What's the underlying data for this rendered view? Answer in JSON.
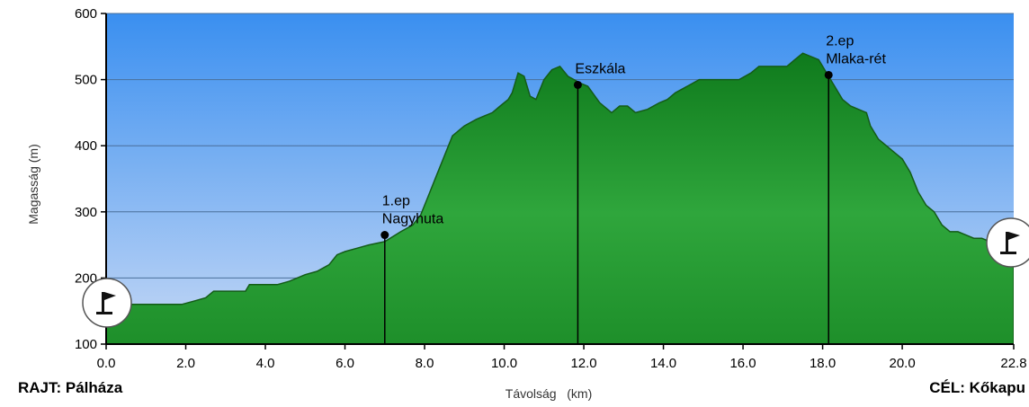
{
  "chart_data": {
    "type": "area",
    "xlabel": "Távolság   (km)",
    "ylabel": "Magasság (m)",
    "xlim": [
      0.0,
      22.8
    ],
    "ylim": [
      100,
      600
    ],
    "x_ticks": [
      "0.0",
      "2.0",
      "4.0",
      "6.0",
      "8.0",
      "10.0",
      "12.0",
      "14.0",
      "16.0",
      "18.0",
      "20.0",
      "22.8"
    ],
    "x_tick_values": [
      0,
      2,
      4,
      6,
      8,
      10,
      12,
      14,
      16,
      18,
      20,
      22.8
    ],
    "y_ticks": [
      "100",
      "200",
      "300",
      "400",
      "500",
      "600"
    ],
    "y_tick_values": [
      100,
      200,
      300,
      400,
      500,
      600
    ],
    "grid": "horizontal",
    "colors": {
      "sky_top": "#3a8ff0",
      "sky_bottom": "#c5d8f5",
      "ground_top": "#0f7a1c",
      "ground_mid": "#2fa63c",
      "ground_bottom": "#1e8f2a",
      "outline": "#145c17"
    },
    "series": [
      {
        "x": [
          0,
          0.3,
          0.6,
          1.0,
          1.5,
          1.9,
          2.2,
          2.5,
          2.7,
          3.0,
          3.4,
          3.5,
          3.6,
          4.0,
          4.3,
          4.6,
          5.0,
          5.3,
          5.6,
          5.8,
          6.0,
          6.3,
          6.6,
          7.0,
          7.4,
          7.7,
          7.9,
          8.1,
          8.3,
          8.5,
          8.7,
          9.0,
          9.3,
          9.5,
          9.7,
          9.9,
          10.1,
          10.2,
          10.35,
          10.5,
          10.65,
          10.8,
          11.0,
          11.2,
          11.4,
          11.6,
          11.9,
          12.1,
          12.4,
          12.7,
          12.9,
          13.1,
          13.3,
          13.6,
          13.9,
          14.1,
          14.3,
          14.6,
          14.9,
          15.1,
          15.4,
          15.9,
          16.2,
          16.4,
          16.6,
          16.9,
          17.1,
          17.3,
          17.5,
          17.7,
          17.9,
          18.1,
          18.3,
          18.5,
          18.7,
          18.9,
          19.1,
          19.2,
          19.4,
          19.6,
          19.8,
          20.0,
          20.2,
          20.4,
          20.6,
          20.8,
          21.0,
          21.2,
          21.4,
          21.6,
          21.8,
          22.0,
          22.2,
          22.4,
          22.6,
          22.8
        ],
        "y": [
          160,
          160,
          160,
          160,
          160,
          160,
          165,
          170,
          180,
          180,
          180,
          180,
          190,
          190,
          190,
          195,
          205,
          210,
          220,
          235,
          240,
          245,
          250,
          255,
          270,
          280,
          295,
          325,
          355,
          385,
          415,
          430,
          440,
          445,
          450,
          460,
          470,
          480,
          510,
          505,
          475,
          470,
          500,
          515,
          520,
          505,
          495,
          490,
          465,
          450,
          460,
          460,
          450,
          455,
          465,
          470,
          480,
          490,
          500,
          500,
          500,
          500,
          510,
          520,
          520,
          520,
          520,
          530,
          540,
          535,
          530,
          510,
          490,
          470,
          460,
          455,
          450,
          430,
          410,
          400,
          390,
          380,
          360,
          330,
          310,
          300,
          280,
          270,
          270,
          265,
          260,
          260,
          255,
          250,
          245,
          245
        ]
      }
    ],
    "waypoints": [
      {
        "lines": [
          "1.ep",
          "Nagyhuta"
        ],
        "x": 7.0,
        "y": 265
      },
      {
        "lines": [
          "Eszkála"
        ],
        "x": 11.85,
        "y": 492
      },
      {
        "lines": [
          "2.ep",
          "Mlaka-rét"
        ],
        "x": 18.15,
        "y": 507
      }
    ],
    "start_label": "RAJT: Pálháza",
    "end_label": "CÉL: Kőkapu",
    "start_icon": "flag-icon",
    "end_icon": "flag-icon"
  }
}
